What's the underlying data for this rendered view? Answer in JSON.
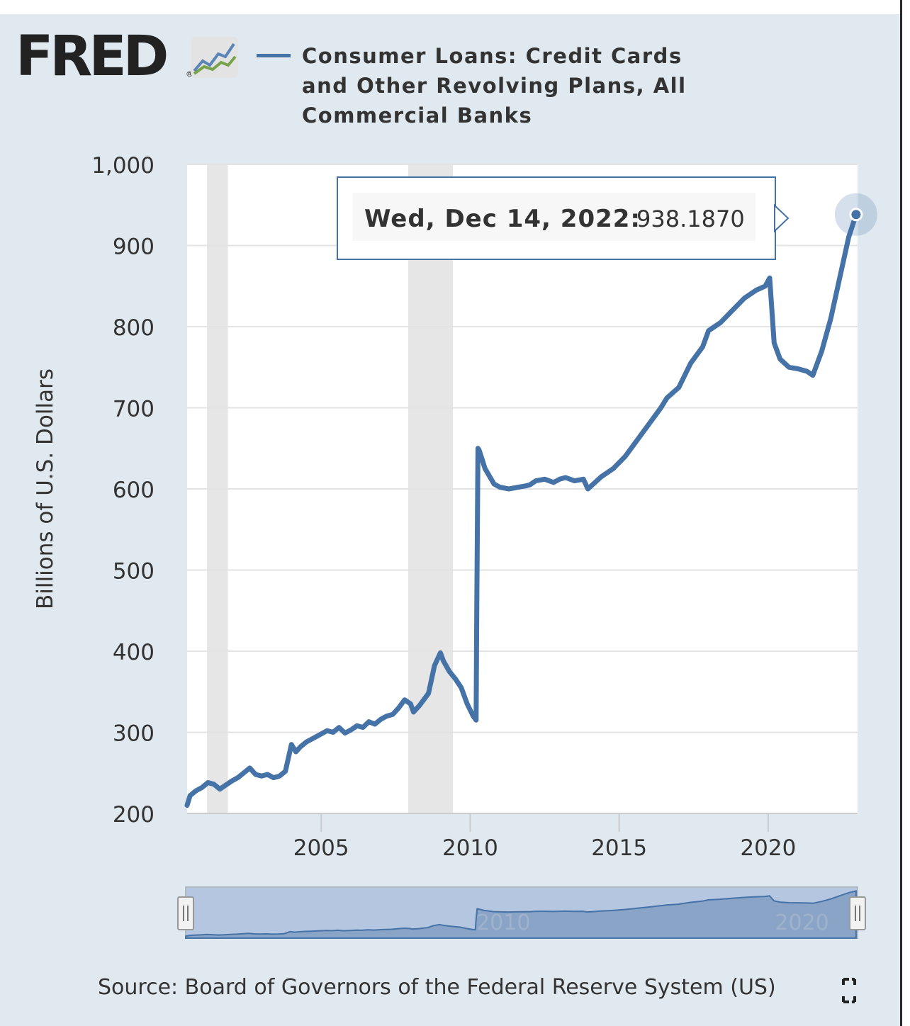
{
  "app": {
    "logo_text": "FRED",
    "logo_reg": "®"
  },
  "legend": {
    "series_name": "Consumer Loans: Credit Cards and Other Revolving Plans, All Commercial Banks",
    "line_color": "#4572a7"
  },
  "tooltip": {
    "date_label": "Wed, Dec 14, 2022:",
    "value": "938.1870"
  },
  "navigator": {
    "tick_labels": [
      "2010",
      "2020"
    ],
    "left_handle_icon": "drag-handle-icon",
    "right_handle_icon": "drag-handle-icon"
  },
  "footer": {
    "source_text": "Source: Board of Governors of the Federal Reserve System (US)",
    "fullscreen_icon": "fullscreen-icon"
  },
  "colors": {
    "background": "#e1e9f0",
    "plot_background": "#ffffff",
    "recession_band": "#e6e6e6",
    "series": "#4572a7",
    "navigator_fill": "#b4c6e0",
    "navigator_area": "#8aa4c8"
  },
  "chart_data": {
    "type": "line",
    "title": "",
    "xlabel": "",
    "ylabel": "Billions of U.S. Dollars",
    "xlim": [
      2000.5,
      2023.0
    ],
    "ylim": [
      200,
      1000
    ],
    "y_ticks": [
      200,
      300,
      400,
      500,
      600,
      700,
      800,
      900,
      1000
    ],
    "y_tick_labels": [
      "200",
      "300",
      "400",
      "500",
      "600",
      "700",
      "800",
      "900",
      "1,000"
    ],
    "x_ticks": [
      2005,
      2010,
      2015,
      2020
    ],
    "x_tick_labels": [
      "2005",
      "2010",
      "2015",
      "2020"
    ],
    "grid": true,
    "recessions": [
      [
        2001.17,
        2001.87
      ],
      [
        2007.92,
        2009.42
      ]
    ],
    "highlight_point": {
      "x": 2022.95,
      "y": 938.187
    },
    "series": [
      {
        "name": "Consumer Loans: Credit Cards and Other Revolving Plans, All Commercial Banks",
        "x": [
          2000.5,
          2000.6,
          2000.8,
          2001.0,
          2001.2,
          2001.4,
          2001.6,
          2001.8,
          2002.0,
          2002.2,
          2002.4,
          2002.6,
          2002.8,
          2003.0,
          2003.2,
          2003.4,
          2003.6,
          2003.8,
          2004.0,
          2004.15,
          2004.3,
          2004.5,
          2004.7,
          2005.0,
          2005.2,
          2005.4,
          2005.6,
          2005.8,
          2006.0,
          2006.2,
          2006.4,
          2006.6,
          2006.8,
          2007.0,
          2007.2,
          2007.4,
          2007.6,
          2007.8,
          2008.0,
          2008.1,
          2008.3,
          2008.6,
          2008.8,
          2009.0,
          2009.1,
          2009.3,
          2009.5,
          2009.7,
          2009.9,
          2010.1,
          2010.2,
          2010.22,
          2010.26,
          2010.3,
          2010.5,
          2010.8,
          2011.0,
          2011.3,
          2011.6,
          2011.9,
          2012.0,
          2012.2,
          2012.5,
          2012.8,
          2013.0,
          2013.2,
          2013.5,
          2013.8,
          2013.95,
          2014.1,
          2014.4,
          2014.8,
          2015.2,
          2015.6,
          2016.0,
          2016.4,
          2016.6,
          2017.0,
          2017.4,
          2017.8,
          2018.0,
          2018.4,
          2018.8,
          2019.2,
          2019.6,
          2019.9,
          2020.05,
          2020.2,
          2020.4,
          2020.7,
          2021.0,
          2021.3,
          2021.5,
          2021.8,
          2022.1,
          2022.4,
          2022.7,
          2022.95
        ],
        "values": [
          210,
          222,
          228,
          232,
          238,
          236,
          230,
          235,
          240,
          244,
          250,
          256,
          248,
          246,
          248,
          244,
          246,
          252,
          285,
          276,
          282,
          288,
          292,
          298,
          302,
          300,
          306,
          299,
          303,
          308,
          306,
          313,
          310,
          316,
          320,
          322,
          330,
          340,
          335,
          325,
          333,
          348,
          382,
          398,
          388,
          375,
          366,
          355,
          335,
          320,
          315,
          450,
          650,
          648,
          625,
          606,
          602,
          600,
          602,
          604,
          605,
          610,
          612,
          608,
          612,
          614,
          610,
          612,
          600,
          605,
          615,
          625,
          640,
          660,
          680,
          700,
          712,
          725,
          755,
          775,
          795,
          805,
          820,
          835,
          845,
          850,
          860,
          780,
          760,
          750,
          748,
          745,
          740,
          770,
          810,
          860,
          910,
          938.187
        ]
      }
    ],
    "navigator": {
      "xlim": [
        2000.5,
        2023.0
      ],
      "ylim": [
        180,
        1000
      ]
    }
  }
}
